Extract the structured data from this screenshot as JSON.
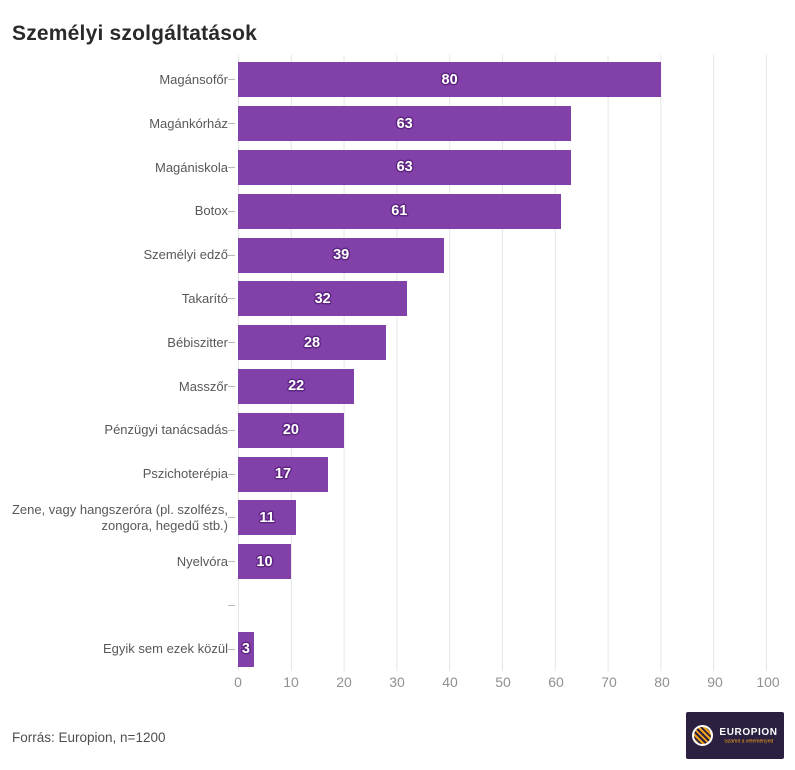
{
  "chart_data": {
    "type": "bar",
    "orientation": "horizontal",
    "title": "Személyi szolgáltatások",
    "categories": [
      "Magánsofőr",
      "Magánkórház",
      "Magániskola",
      "Botox",
      "Személyi edző",
      "Takarító",
      "Bébiszitter",
      "Masszőr",
      "Pénzügyi tanácsadás",
      "Pszichoterépia",
      "Zene, vagy hangszeróra (pl. szolfézs,\nzongora, hegedű stb.)",
      "Nyelvóra",
      "",
      "Egyik sem ezek közül"
    ],
    "values": [
      80,
      63,
      63,
      61,
      39,
      32,
      28,
      22,
      20,
      17,
      11,
      10,
      null,
      3
    ],
    "xlim": [
      0,
      100
    ],
    "x_ticks": [
      0,
      10,
      20,
      30,
      40,
      50,
      60,
      70,
      80,
      90,
      100
    ],
    "grid": true,
    "legend": "none",
    "bar_color": "#8141a8",
    "value_label_color": "#ffffff",
    "value_label_outline_color": "#5f2583"
  },
  "footer": {
    "source": "Forrás: Europion, n=1200"
  },
  "logo": {
    "name": "EUROPION",
    "tagline": "Számít a véleményed",
    "background_color": "#2b2040",
    "accent_color": "#f2a31b"
  }
}
